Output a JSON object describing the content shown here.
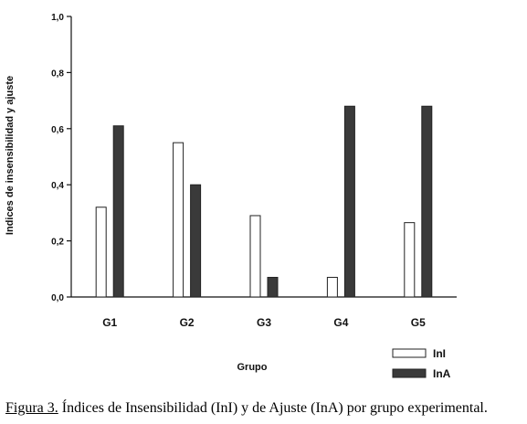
{
  "chart_data": {
    "type": "bar",
    "categories": [
      "G1",
      "G2",
      "G3",
      "G4",
      "G5"
    ],
    "series": [
      {
        "name": "InI",
        "values": [
          0.32,
          0.55,
          0.29,
          0.07,
          0.265
        ],
        "fill": "#ffffff"
      },
      {
        "name": "InA",
        "values": [
          0.61,
          0.4,
          0.07,
          0.68,
          0.68
        ],
        "fill": "#3a3a3a"
      }
    ],
    "xlabel": "Grupo",
    "ylabel": "Indices de insensibilidad y ajuste",
    "ylim": [
      0,
      1
    ],
    "yticks": [
      0.0,
      0.2,
      0.4,
      0.6,
      0.8,
      1.0
    ],
    "ytick_labels": [
      "0,0",
      "0,2",
      "0,4",
      "0,6",
      "0,8",
      "1,0"
    ],
    "grid": false,
    "legend_position": "bottom-right"
  },
  "caption": {
    "lead": "Figura 3.",
    "text": " Índices de Insensibilidad (InI) y de Ajuste (InA) por grupo experimental."
  }
}
